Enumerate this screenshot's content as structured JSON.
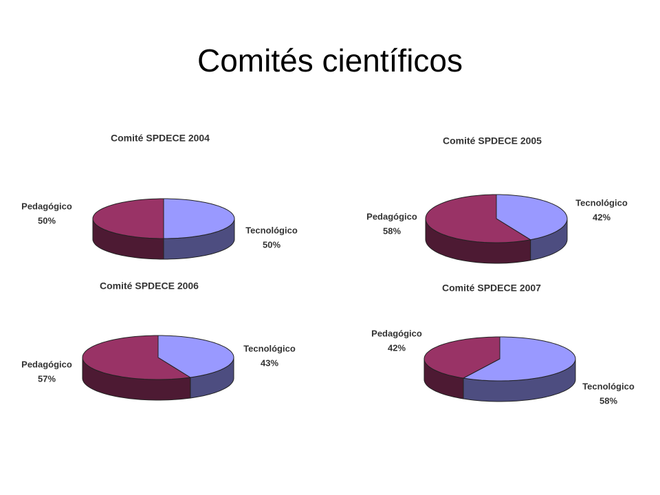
{
  "slide_title": "Comités científicos",
  "chart_data": [
    {
      "type": "pie3d",
      "title": "Comité SPDECE 2004",
      "categories": [
        "Tecnológico",
        "Pedagógico"
      ],
      "values": [
        50,
        50
      ],
      "value_labels": [
        "50%",
        "50%"
      ],
      "colors": [
        "#9999ff",
        "#993366"
      ]
    },
    {
      "type": "pie3d",
      "title": "Comité SPDECE 2005",
      "categories": [
        "Tecnológico",
        "Pedagógico"
      ],
      "values": [
        42,
        58
      ],
      "value_labels": [
        "42%",
        "58%"
      ],
      "colors": [
        "#9999ff",
        "#993366"
      ]
    },
    {
      "type": "pie3d",
      "title": "Comité SPDECE 2006",
      "categories": [
        "Tecnológico",
        "Pedagógico"
      ],
      "values": [
        43,
        57
      ],
      "value_labels": [
        "43%",
        "57%"
      ],
      "colors": [
        "#9999ff",
        "#993366"
      ]
    },
    {
      "type": "pie3d",
      "title": "Comité SPDECE 2007",
      "categories": [
        "Tecnológico",
        "Pedagógico"
      ],
      "values": [
        58,
        42
      ],
      "value_labels": [
        "58%",
        "42%"
      ],
      "colors": [
        "#9999ff",
        "#993366"
      ]
    }
  ]
}
